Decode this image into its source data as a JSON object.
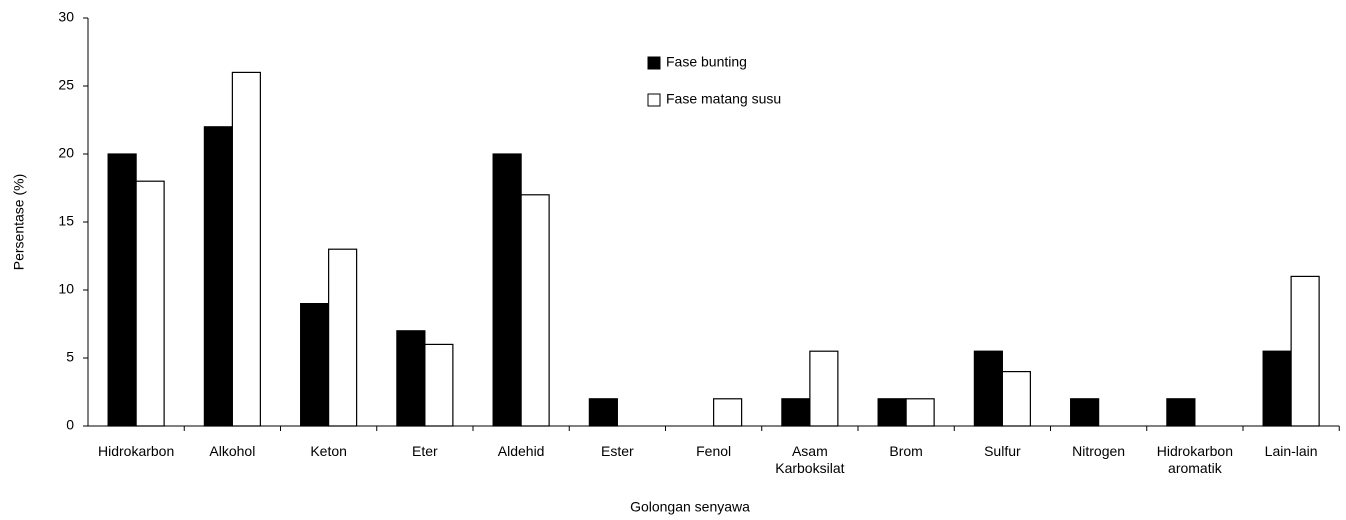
{
  "chart_data": {
    "type": "bar",
    "xlabel": "Golongan senyawa",
    "ylabel": "Persentase (%)",
    "categories": [
      "Hidrokarbon",
      "Alkohol",
      "Keton",
      "Eter",
      "Aldehid",
      "Ester",
      "Fenol",
      "Asam Karboksilat",
      "Brom",
      "Sulfur",
      "Nitrogen",
      "Hidrokarbon aromatik",
      "Lain-lain"
    ],
    "series": [
      {
        "name": "Fase bunting",
        "color": "#000000",
        "values": [
          20,
          22,
          9,
          7,
          20,
          2,
          0,
          2,
          2,
          5.5,
          2,
          2,
          5.5
        ]
      },
      {
        "name": "Fase matang susu",
        "color": "#ffffff",
        "values": [
          18,
          26,
          13,
          6,
          17,
          0,
          2,
          5.5,
          2,
          4,
          0,
          0,
          11
        ]
      }
    ],
    "edgecolor": "#000000",
    "ylim": [
      0,
      30
    ],
    "yticks": [
      0,
      5,
      10,
      15,
      20,
      25,
      30
    ],
    "grid": false,
    "legend": "upper center"
  }
}
